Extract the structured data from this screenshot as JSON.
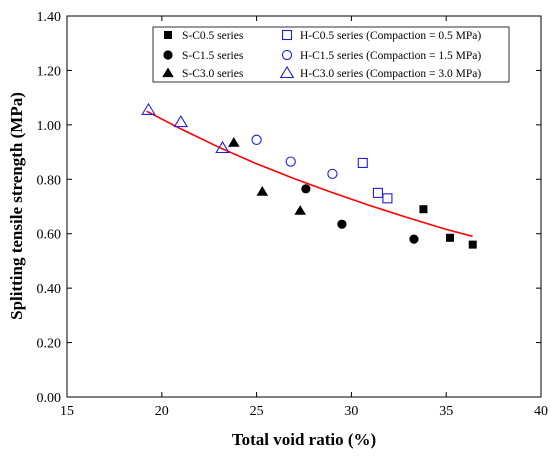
{
  "chart_data": {
    "type": "scatter",
    "xlabel": "Total void ratio (%)",
    "ylabel": "Splitting tensile strength (MPa)",
    "xlim": [
      15,
      40
    ],
    "ylim": [
      0,
      1.4
    ],
    "xticks": [
      "15",
      "20",
      "25",
      "30",
      "35",
      "40"
    ],
    "yticks": [
      "0.00",
      "0.20",
      "0.40",
      "0.60",
      "0.80",
      "1.00",
      "1.20",
      "1.40"
    ],
    "grid": false,
    "legend_position": "top-right",
    "colors": {
      "solid": "#000000",
      "hollow": "#1f1fd6",
      "trend": "#ff0000"
    },
    "series": [
      {
        "name": "S-C0.5 series",
        "marker": "square",
        "fill": "filled",
        "x": [
          33.8,
          35.2,
          36.4
        ],
        "y": [
          0.69,
          0.585,
          0.56
        ]
      },
      {
        "name": "S-C1.5 series",
        "marker": "circle",
        "fill": "filled",
        "x": [
          27.6,
          29.5,
          33.3
        ],
        "y": [
          0.765,
          0.635,
          0.58
        ]
      },
      {
        "name": "S-C3.0 series",
        "marker": "triangle",
        "fill": "filled",
        "x": [
          23.8,
          25.3,
          27.3
        ],
        "y": [
          0.935,
          0.755,
          0.685
        ]
      },
      {
        "name": "H-C0.5 series (Compaction = 0.5 MPa)",
        "marker": "square",
        "fill": "hollow",
        "x": [
          30.6,
          31.4,
          31.9
        ],
        "y": [
          0.86,
          0.75,
          0.73
        ]
      },
      {
        "name": "H-C1.5 series (Compaction = 1.5 MPa)",
        "marker": "circle",
        "fill": "hollow",
        "x": [
          25.0,
          26.8,
          29.0
        ],
        "y": [
          0.945,
          0.865,
          0.82
        ]
      },
      {
        "name": "H-C3.0 series (Compaction = 3.0 MPa)",
        "marker": "triangle",
        "fill": "hollow",
        "x": [
          19.3,
          21.0,
          23.2
        ],
        "y": [
          1.055,
          1.01,
          0.915
        ]
      }
    ],
    "trendline": {
      "x": [
        19.2,
        21,
        23,
        25,
        27,
        29,
        31,
        33,
        35,
        36.4
      ],
      "y": [
        1.05,
        0.985,
        0.918,
        0.857,
        0.802,
        0.751,
        0.703,
        0.658,
        0.616,
        0.59
      ]
    }
  }
}
